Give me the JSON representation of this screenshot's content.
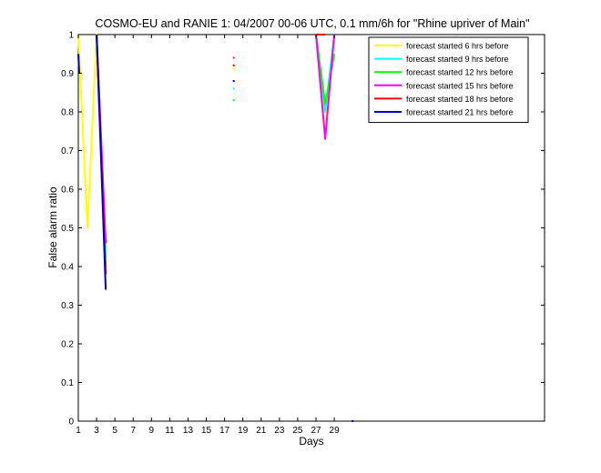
{
  "chart_data": {
    "type": "line",
    "title": "COSMO-EU and RANIE 1: 04/2007 00-06 UTC, 0.1 mm/6h for \"Rhine upriver of Main\"",
    "xlabel": "Days",
    "ylabel": "False alarm ratio",
    "xlim": [
      1,
      52
    ],
    "ylim": [
      0,
      1
    ],
    "grid": false,
    "legend_position": "top-right",
    "x_ticks": [
      1,
      3,
      5,
      7,
      9,
      11,
      13,
      15,
      17,
      19,
      21,
      23,
      25,
      27,
      29
    ],
    "y_ticks": [
      0,
      0.1,
      0.2,
      0.3,
      0.4,
      0.5,
      0.6,
      0.7,
      0.8,
      0.9,
      1
    ],
    "series": [
      {
        "name": "forecast started 6 hrs before",
        "color": "#ffff00",
        "segments": [
          [
            [
              1,
              1
            ],
            [
              2,
              0.5
            ],
            [
              3,
              1
            ],
            [
              4,
              0.45
            ]
          ],
          [
            [
              27,
              1
            ],
            [
              28,
              0.75
            ],
            [
              29,
              1
            ]
          ]
        ],
        "points": [
          [
            18,
            0.91
          ]
        ]
      },
      {
        "name": "forecast started 9 hrs before",
        "color": "#00ffff",
        "segments": [
          [
            [
              3,
              1
            ],
            [
              4,
              0.42
            ]
          ],
          [
            [
              27,
              1
            ],
            [
              28,
              0.8
            ],
            [
              29,
              1
            ]
          ]
        ],
        "points": [
          [
            18,
            0.86
          ]
        ]
      },
      {
        "name": "forecast started 12 hrs before",
        "color": "#00ff00",
        "segments": [
          [
            [
              3,
              1
            ],
            [
              4,
              0.4
            ]
          ],
          [
            [
              27,
              1
            ],
            [
              28,
              0.82
            ],
            [
              29,
              0.95
            ]
          ]
        ],
        "points": [
          [
            18,
            0.83
          ]
        ]
      },
      {
        "name": "forecast started 15 hrs before",
        "color": "#ff00ff",
        "segments": [
          [
            [
              3,
              1
            ],
            [
              4,
              0.46
            ]
          ],
          [
            [
              27,
              1
            ],
            [
              28,
              0.73
            ],
            [
              29,
              1
            ]
          ]
        ],
        "points": [
          [
            18,
            0.94
          ]
        ]
      },
      {
        "name": "forecast started 18 hrs before",
        "color": "#ff0000",
        "segments": [
          [
            [
              3,
              1
            ],
            [
              4,
              0.38
            ]
          ],
          [
            [
              27,
              1
            ],
            [
              28,
              1
            ]
          ]
        ],
        "points": [
          [
            18,
            0.92
          ]
        ]
      },
      {
        "name": "forecast started 21 hrs before",
        "color": "#0000cc",
        "segments": [
          [
            [
              1,
              0.95
            ],
            [
              1.1,
              0.9
            ]
          ],
          [
            [
              3,
              1
            ],
            [
              4,
              0.34
            ]
          ]
        ],
        "points": [
          [
            18,
            0.88
          ],
          [
            31,
            0
          ]
        ]
      }
    ]
  }
}
